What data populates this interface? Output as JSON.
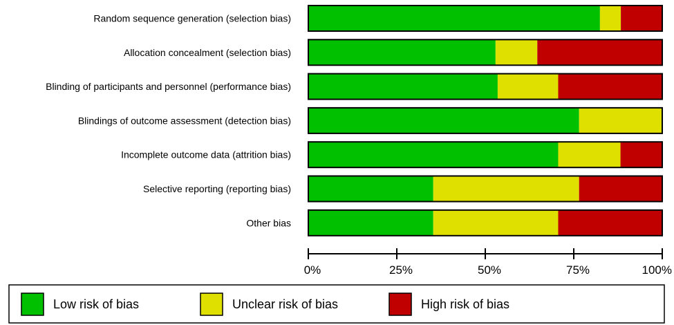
{
  "chart_data": {
    "type": "bar",
    "orientation": "horizontal",
    "stacked": true,
    "percent": true,
    "categories": [
      "Random sequence generation (selection bias)",
      "Allocation concealment (selection bias)",
      "Blinding of participants and personnel (performance bias)",
      "Blindings of outcome assessment (detection bias)",
      "Incomplete outcome data (attrition bias)",
      "Selective reporting (reporting bias)",
      "Other bias"
    ],
    "series": [
      {
        "name": "Low risk of bias",
        "color": "#00c000",
        "values": [
          82.4,
          52.9,
          53.5,
          76.5,
          70.6,
          35.3,
          35.3
        ]
      },
      {
        "name": "Unclear risk of bias",
        "color": "#e0e000",
        "values": [
          5.9,
          11.8,
          17.1,
          23.5,
          17.6,
          41.2,
          35.3
        ]
      },
      {
        "name": "High risk of bias",
        "color": "#c00000",
        "values": [
          11.7,
          35.3,
          29.4,
          0,
          11.8,
          23.5,
          29.4
        ]
      }
    ],
    "xlim": [
      0,
      100
    ],
    "xticks": [
      0,
      25,
      50,
      75,
      100
    ],
    "xtick_labels": [
      "0%",
      "25%",
      "50%",
      "75%",
      "100%"
    ],
    "legend_position": "bottom",
    "grid": false
  }
}
